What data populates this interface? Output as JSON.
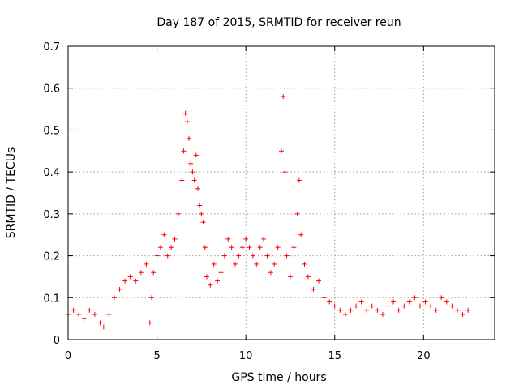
{
  "chart_data": {
    "type": "scatter",
    "title": "Day 187 of 2015, SRMTID for receiver reun",
    "xlabel": "GPS time / hours",
    "ylabel": "SRMTID / TECUs",
    "xlim": [
      0,
      24
    ],
    "ylim": [
      0,
      0.7
    ],
    "xticks": [
      0,
      5,
      10,
      15,
      20
    ],
    "xtick_labels": [
      "0",
      "5",
      "10",
      "15",
      "20"
    ],
    "yticks": [
      0,
      0.1,
      0.2,
      0.3,
      0.4,
      0.5,
      0.6,
      0.7
    ],
    "ytick_labels": [
      "0",
      "0.1",
      "0.2",
      "0.3",
      "0.4",
      "0.5",
      "0.6",
      "0.7"
    ],
    "grid": true,
    "marker": "+",
    "color": "#ff0000",
    "series": [
      {
        "name": "SRMTID",
        "x": [
          0.0,
          0.3,
          0.6,
          0.9,
          1.2,
          1.5,
          1.8,
          2.0,
          2.3,
          2.6,
          2.9,
          3.2,
          3.5,
          3.8,
          4.1,
          4.4,
          4.6,
          4.7,
          4.8,
          5.0,
          5.2,
          5.4,
          5.6,
          5.8,
          6.0,
          6.2,
          6.4,
          6.5,
          6.6,
          6.7,
          6.8,
          6.9,
          7.0,
          7.1,
          7.2,
          7.3,
          7.4,
          7.5,
          7.6,
          7.7,
          7.8,
          8.0,
          8.2,
          8.4,
          8.6,
          8.8,
          9.0,
          9.2,
          9.4,
          9.6,
          9.8,
          10.0,
          10.2,
          10.4,
          10.6,
          10.8,
          11.0,
          11.2,
          11.4,
          11.6,
          11.8,
          12.0,
          12.1,
          12.2,
          12.3,
          12.5,
          12.7,
          12.9,
          13.0,
          13.1,
          13.3,
          13.5,
          13.8,
          14.1,
          14.4,
          14.7,
          15.0,
          15.3,
          15.6,
          15.9,
          16.2,
          16.5,
          16.8,
          17.1,
          17.4,
          17.7,
          18.0,
          18.3,
          18.6,
          18.9,
          19.2,
          19.5,
          19.8,
          20.1,
          20.4,
          20.7,
          21.0,
          21.3,
          21.6,
          21.9,
          22.2,
          22.5
        ],
        "y": [
          0.06,
          0.07,
          0.06,
          0.05,
          0.07,
          0.06,
          0.04,
          0.03,
          0.06,
          0.1,
          0.12,
          0.14,
          0.15,
          0.14,
          0.16,
          0.18,
          0.04,
          0.1,
          0.16,
          0.2,
          0.22,
          0.25,
          0.2,
          0.22,
          0.24,
          0.3,
          0.38,
          0.45,
          0.54,
          0.52,
          0.48,
          0.42,
          0.4,
          0.38,
          0.44,
          0.36,
          0.32,
          0.3,
          0.28,
          0.22,
          0.15,
          0.13,
          0.18,
          0.14,
          0.16,
          0.2,
          0.24,
          0.22,
          0.18,
          0.2,
          0.22,
          0.24,
          0.22,
          0.2,
          0.18,
          0.22,
          0.24,
          0.2,
          0.16,
          0.18,
          0.22,
          0.45,
          0.58,
          0.4,
          0.2,
          0.15,
          0.22,
          0.3,
          0.38,
          0.25,
          0.18,
          0.15,
          0.12,
          0.14,
          0.1,
          0.09,
          0.08,
          0.07,
          0.06,
          0.07,
          0.08,
          0.09,
          0.07,
          0.08,
          0.07,
          0.06,
          0.08,
          0.09,
          0.07,
          0.08,
          0.09,
          0.1,
          0.08,
          0.09,
          0.08,
          0.07,
          0.1,
          0.09,
          0.08,
          0.07,
          0.06,
          0.07
        ]
      }
    ]
  }
}
